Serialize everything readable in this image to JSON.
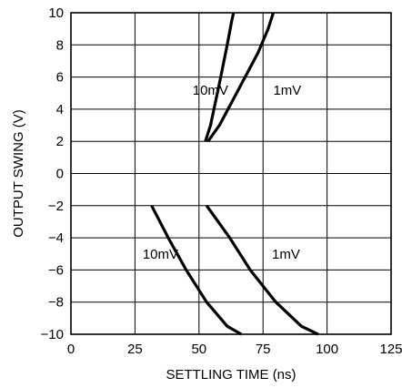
{
  "chart_data": {
    "type": "line",
    "xlabel": "SETTLING TIME (ns)",
    "ylabel": "OUTPUT SWING (V)",
    "xlim": [
      0,
      125
    ],
    "ylim": [
      -10,
      10
    ],
    "x_ticks": [
      0,
      25,
      50,
      75,
      100,
      125
    ],
    "y_ticks": [
      10,
      8,
      6,
      4,
      2,
      0,
      -2,
      -4,
      -6,
      -8,
      -10
    ],
    "x_tick_labels": [
      "0",
      "25",
      "50",
      "75",
      "100",
      "125"
    ],
    "y_tick_labels": [
      "10",
      "8",
      "6",
      "4",
      "2",
      "0",
      "−2",
      "−4",
      "−6",
      "−8",
      "−10"
    ],
    "grid": true,
    "series": [
      {
        "name": "10mV",
        "points": [
          [
            52.5,
            2.0
          ],
          [
            54.5,
            3.0
          ],
          [
            56.5,
            4.5
          ],
          [
            58.5,
            6.0
          ],
          [
            61.0,
            8.0
          ],
          [
            62.8,
            9.5
          ],
          [
            63.5,
            10.0
          ]
        ]
      },
      {
        "name": "1mV",
        "points": [
          [
            53.5,
            2.0
          ],
          [
            58.0,
            3.0
          ],
          [
            63.0,
            4.5
          ],
          [
            68.0,
            6.0
          ],
          [
            73.0,
            7.5
          ],
          [
            77.0,
            9.0
          ],
          [
            79.0,
            10.0
          ]
        ]
      },
      {
        "name": "10mV",
        "points": [
          [
            31.5,
            -2.0
          ],
          [
            38.0,
            -4.0
          ],
          [
            45.0,
            -6.0
          ],
          [
            53.0,
            -8.0
          ],
          [
            61.0,
            -9.5
          ],
          [
            66.5,
            -10.0
          ]
        ]
      },
      {
        "name": "1mV",
        "points": [
          [
            53.0,
            -2.0
          ],
          [
            62.0,
            -4.0
          ],
          [
            70.0,
            -6.0
          ],
          [
            80.0,
            -8.0
          ],
          [
            90.0,
            -9.5
          ],
          [
            96.5,
            -10.0
          ]
        ]
      }
    ],
    "labels": [
      {
        "text": "10mV",
        "x": 47.5,
        "y": 4.9
      },
      {
        "text": "1mV",
        "x": 79.0,
        "y": 4.9
      },
      {
        "text": "10mV",
        "x": 28.0,
        "y": -5.3
      },
      {
        "text": "1mV",
        "x": 78.5,
        "y": -5.3
      }
    ]
  }
}
